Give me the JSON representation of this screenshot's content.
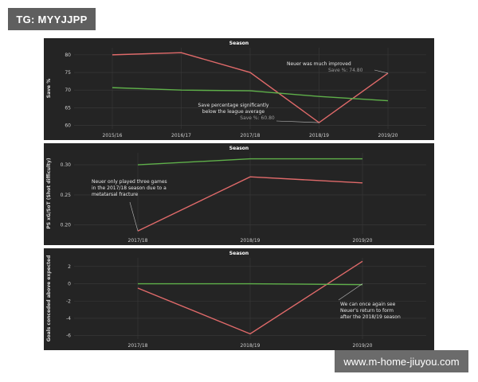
{
  "header": {
    "tag": "TG: MYYJJPP"
  },
  "footer": {
    "watermark": "www.m-home-jiuyou.com"
  },
  "colors": {
    "background": "#242424",
    "save_line": "#e06a6a",
    "league_line": "#5fb04a"
  },
  "chart_data": [
    {
      "type": "line",
      "title": "Season",
      "ylabel": "Save %",
      "xlabel": "",
      "categories": [
        "2015/16",
        "2016/17",
        "2017/18",
        "2018/19",
        "2019/20"
      ],
      "ylim": [
        59,
        82
      ],
      "yticks": [
        60,
        65,
        70,
        75,
        80
      ],
      "series": [
        {
          "values": [
            80,
            80.6,
            75,
            60.8,
            74.8
          ],
          "color": "#e06a6a"
        },
        {
          "values": [
            70.7,
            70,
            69.8,
            68.2,
            67
          ],
          "color": "#5fb04a"
        }
      ],
      "annotations": [
        {
          "lines": [
            "Neuer was much improved"
          ],
          "sub": "Save %: 74.80",
          "at_category": 4,
          "at_value": 74.8
        },
        {
          "lines": [
            "Save percentage significantly",
            "below the league average"
          ],
          "sub": "Save %: 60.80",
          "at_category": 3,
          "at_value": 60.8
        }
      ]
    },
    {
      "type": "line",
      "title": "Season",
      "ylabel": "PS xG/SoT (Shot difficulty)",
      "xlabel": "",
      "categories": [
        "2017/18",
        "2018/19",
        "2019/20"
      ],
      "ylim": [
        0.185,
        0.32
      ],
      "yticks": [
        0.2,
        0.25,
        0.3
      ],
      "yticklabels": [
        "0.20",
        "0.25",
        "0.30"
      ],
      "series": [
        {
          "values": [
            0.19,
            0.28,
            0.27
          ],
          "color": "#e06a6a"
        },
        {
          "values": [
            0.3,
            0.31,
            0.31
          ],
          "color": "#5fb04a"
        }
      ],
      "annotations": [
        {
          "lines": [
            "Neuer only played three games",
            "in the 2017/18 season due to a",
            "metatarsal fracture"
          ],
          "sub": "",
          "at_category": 0,
          "at_value": 0.19
        }
      ]
    },
    {
      "type": "line",
      "title": "Season",
      "ylabel": "Goals conceded above expected",
      "xlabel": "",
      "categories": [
        "2017/18",
        "2018/19",
        "2019/20"
      ],
      "ylim": [
        -6.4,
        3
      ],
      "yticks": [
        -6,
        -4,
        -2,
        0,
        2
      ],
      "series": [
        {
          "values": [
            -0.5,
            -5.8,
            2.6
          ],
          "color": "#e06a6a"
        },
        {
          "values": [
            0,
            0,
            -0.1
          ],
          "color": "#5fb04a"
        }
      ],
      "annotations": [
        {
          "lines": [
            "We can once again see",
            "Neuer's return to form",
            "after the 2018/19 season"
          ],
          "sub": "",
          "at_category": 2,
          "at_value": 0
        }
      ]
    }
  ]
}
